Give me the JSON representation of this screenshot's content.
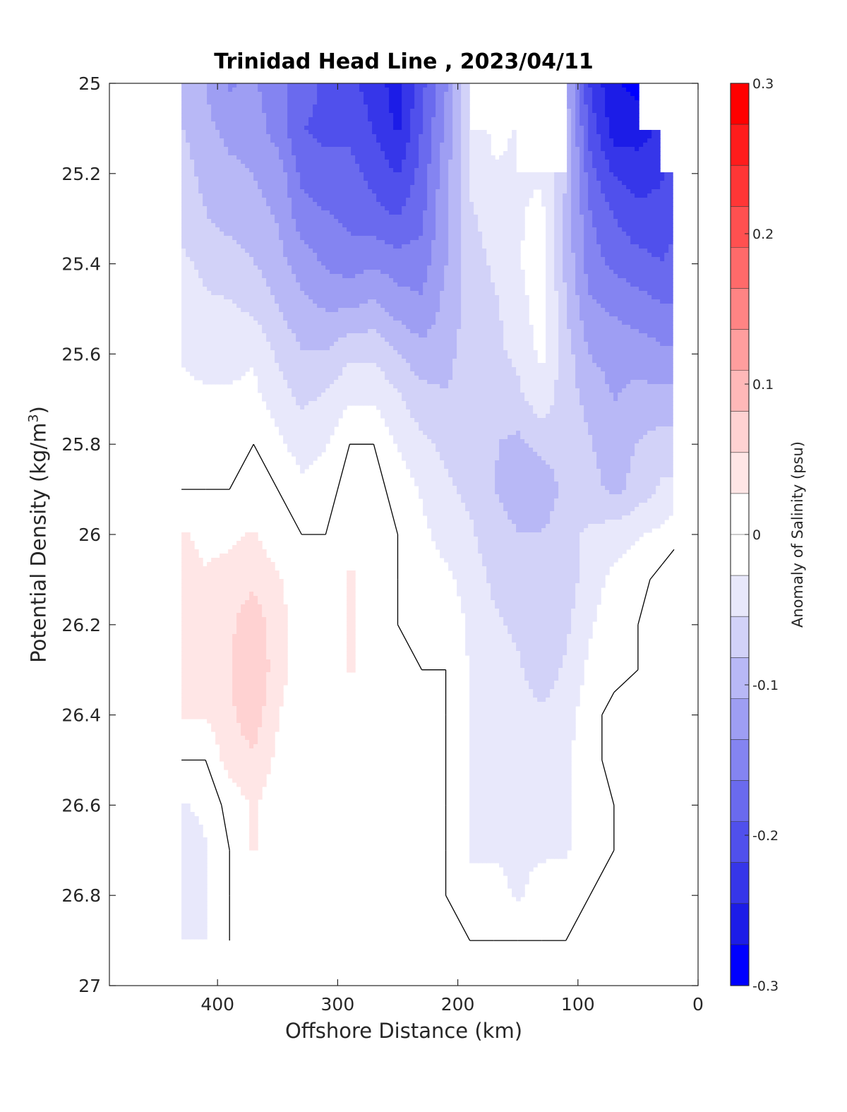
{
  "chart_data": {
    "type": "contour",
    "title": "Trinidad Head Line , 2023/04/11",
    "xlabel": "Offshore Distance (km)",
    "ylabel_main": "Potential Density (kg/m",
    "ylabel_sup": "3",
    "ylabel_close": ")",
    "colorbar_label": "Anomaly of Salinity (psu)",
    "xlim": [
      490,
      0
    ],
    "ylim": [
      27,
      25
    ],
    "x_reversed": true,
    "y_reversed": true,
    "xticks": [
      400,
      300,
      200,
      100,
      0
    ],
    "xtick_labels": [
      "400",
      "300",
      "200",
      "100",
      "0"
    ],
    "yticks": [
      25,
      25.2,
      25.4,
      25.6,
      25.8,
      26,
      26.2,
      26.4,
      26.6,
      26.8,
      27
    ],
    "ytick_labels": [
      "25",
      "25.2",
      "25.4",
      "25.6",
      "25.8",
      "26",
      "26.2",
      "26.4",
      "26.6",
      "26.8",
      "27"
    ],
    "colorbar": {
      "range": [
        -0.3,
        0.3
      ],
      "levels": [
        -0.3,
        -0.275,
        -0.25,
        -0.225,
        -0.2,
        -0.175,
        -0.15,
        -0.125,
        -0.1,
        -0.075,
        -0.05,
        -0.025,
        0,
        0.025,
        0.05,
        0.075,
        0.1,
        0.125,
        0.15,
        0.175,
        0.2,
        0.225,
        0.25,
        0.275,
        0.3
      ],
      "tick_values": [
        0.3,
        0.2,
        0.1,
        0,
        -0.1,
        -0.2,
        -0.3
      ],
      "tick_labels": [
        "0.3",
        "0.2",
        "0.1",
        "0",
        "-0.1",
        "-0.2",
        "-0.3"
      ],
      "colors_high_to_low": [
        "#ff0000",
        "#ff1c1c",
        "#ff3636",
        "#ff5050",
        "#ff6a6a",
        "#ff8484",
        "#ff9e9e",
        "#ffb8b8",
        "#ffd2d2",
        "#ffe6e6",
        "#ffffff",
        "#ffffff",
        "#e8e8fb",
        "#d2d2f8",
        "#b8b8f6",
        "#9e9ef3",
        "#8484f1",
        "#6a6aee",
        "#5050ec",
        "#3636e9",
        "#1c1ce7",
        "#0000ff"
      ]
    },
    "zero_contour_color": "#000000",
    "stations_x_km": [
      430,
      410,
      390,
      370,
      350,
      330,
      310,
      290,
      270,
      250,
      230,
      210,
      190,
      170,
      150,
      130,
      110,
      90,
      70,
      50,
      30,
      20
    ],
    "density_levels": [
      25.0,
      25.1,
      25.2,
      25.3,
      25.4,
      25.5,
      25.6,
      25.7,
      25.8,
      25.9,
      26.0,
      26.1,
      26.2,
      26.3,
      26.4,
      26.5,
      26.6,
      26.7,
      26.8,
      26.9
    ],
    "salinity_anomaly_psu": [
      [
        -0.09,
        -0.11,
        -0.14,
        -0.13,
        -0.16,
        -0.17,
        -0.2,
        -0.21,
        -0.23,
        -0.26,
        -0.2,
        -0.14,
        -0.05,
        null,
        null,
        null,
        -0.1,
        -0.22,
        -0.27,
        -0.28,
        null,
        null
      ],
      [
        -0.08,
        -0.1,
        -0.12,
        -0.12,
        -0.15,
        -0.19,
        -0.2,
        -0.2,
        -0.22,
        -0.25,
        -0.19,
        -0.13,
        -0.05,
        -0.02,
        -0.03,
        null,
        -0.09,
        -0.2,
        -0.26,
        -0.26,
        -0.24,
        null
      ],
      [
        -0.07,
        -0.09,
        -0.1,
        -0.11,
        -0.12,
        -0.17,
        -0.18,
        -0.18,
        -0.2,
        -0.22,
        -0.18,
        -0.12,
        -0.05,
        -0.03,
        -0.03,
        -0.03,
        -0.08,
        -0.18,
        -0.22,
        -0.23,
        -0.22,
        -0.21
      ],
      [
        -0.06,
        -0.08,
        -0.09,
        -0.1,
        -0.11,
        -0.15,
        -0.16,
        -0.17,
        -0.18,
        -0.19,
        -0.17,
        -0.11,
        -0.06,
        -0.04,
        -0.03,
        -0.02,
        -0.09,
        -0.16,
        -0.19,
        -0.21,
        -0.21,
        -0.2
      ],
      [
        -0.05,
        -0.06,
        -0.07,
        -0.08,
        -0.1,
        -0.12,
        -0.14,
        -0.15,
        -0.14,
        -0.15,
        -0.15,
        -0.11,
        -0.07,
        -0.05,
        -0.03,
        -0.01,
        -0.09,
        -0.15,
        -0.17,
        -0.18,
        -0.19,
        -0.18
      ],
      [
        -0.04,
        -0.05,
        -0.05,
        -0.06,
        -0.08,
        -0.1,
        -0.11,
        -0.11,
        -0.1,
        -0.12,
        -0.13,
        -0.1,
        -0.07,
        -0.06,
        -0.04,
        -0.01,
        -0.08,
        -0.13,
        -0.14,
        -0.15,
        -0.16,
        -0.16
      ],
      [
        -0.03,
        -0.04,
        -0.04,
        -0.03,
        -0.06,
        -0.08,
        -0.08,
        -0.06,
        -0.06,
        -0.08,
        -0.1,
        -0.09,
        -0.07,
        -0.06,
        -0.05,
        -0.02,
        -0.07,
        -0.11,
        -0.12,
        -0.12,
        -0.13,
        -0.13
      ],
      [
        -0.02,
        -0.02,
        -0.02,
        -0.02,
        -0.04,
        -0.06,
        -0.05,
        -0.03,
        -0.03,
        -0.05,
        -0.07,
        -0.08,
        -0.07,
        -0.07,
        -0.06,
        -0.04,
        -0.07,
        -0.09,
        -0.11,
        -0.1,
        -0.1,
        -0.1
      ],
      [
        -0.01,
        -0.01,
        -0.01,
        0.0,
        -0.02,
        -0.04,
        -0.03,
        0.0,
        0.0,
        -0.03,
        -0.05,
        -0.06,
        -0.07,
        -0.08,
        -0.09,
        -0.07,
        -0.06,
        -0.08,
        -0.1,
        -0.08,
        -0.07,
        -0.07
      ],
      [
        0.0,
        0.0,
        0.0,
        0.01,
        0.0,
        -0.02,
        -0.01,
        0.01,
        0.01,
        -0.01,
        -0.03,
        -0.05,
        -0.06,
        -0.08,
        -0.1,
        -0.11,
        -0.07,
        -0.07,
        -0.09,
        -0.07,
        -0.05,
        -0.05
      ],
      [
        0.03,
        0.02,
        0.02,
        0.03,
        0.01,
        0.0,
        0.0,
        0.02,
        0.02,
        0.0,
        -0.02,
        -0.04,
        -0.05,
        -0.07,
        -0.08,
        -0.08,
        -0.06,
        -0.05,
        -0.04,
        -0.03,
        -0.02,
        -0.01
      ],
      [
        0.04,
        0.03,
        0.04,
        0.05,
        0.03,
        0.01,
        0.0,
        0.03,
        0.02,
        0.0,
        -0.01,
        -0.02,
        -0.04,
        -0.06,
        -0.07,
        -0.08,
        -0.07,
        -0.04,
        -0.02,
        -0.01,
        0.01,
        0.02
      ],
      [
        0.05,
        0.04,
        0.05,
        0.07,
        0.04,
        0.01,
        0.0,
        0.03,
        0.02,
        0.0,
        -0.01,
        -0.01,
        -0.03,
        -0.05,
        -0.06,
        -0.08,
        -0.06,
        -0.03,
        -0.01,
        0.0,
        0.01,
        0.02
      ],
      [
        0.04,
        0.04,
        0.05,
        0.08,
        0.04,
        0.01,
        0.0,
        0.03,
        0.02,
        0.0,
        0.0,
        0.0,
        -0.03,
        -0.04,
        -0.05,
        -0.07,
        -0.05,
        -0.02,
        -0.01,
        0.0,
        0.02,
        0.02
      ],
      [
        0.03,
        0.03,
        0.05,
        0.07,
        0.03,
        0.0,
        0.0,
        0.01,
        0.01,
        0.0,
        0.0,
        0.0,
        -0.03,
        -0.04,
        -0.04,
        -0.05,
        -0.04,
        -0.01,
        0.01,
        0.02,
        0.02,
        0.02
      ],
      [
        0.0,
        0.0,
        0.04,
        0.05,
        0.02,
        0.0,
        0.0,
        0.0,
        0.0,
        0.0,
        0.0,
        0.0,
        -0.03,
        -0.04,
        -0.04,
        -0.04,
        -0.03,
        -0.01,
        0.01,
        0.02,
        0.02,
        0.01
      ],
      [
        -0.03,
        -0.02,
        0.01,
        0.03,
        0.01,
        0.0,
        0.0,
        0.0,
        0.0,
        0.0,
        0.0,
        0.0,
        -0.03,
        -0.03,
        -0.03,
        -0.03,
        -0.03,
        -0.01,
        0.0,
        0.02,
        0.02,
        0.0
      ],
      [
        -0.05,
        -0.03,
        0.0,
        0.03,
        0.0,
        0.0,
        0.0,
        0.0,
        0.0,
        0.0,
        0.0,
        0.0,
        -0.03,
        -0.03,
        -0.03,
        -0.03,
        -0.03,
        -0.01,
        0.0,
        0.01,
        0.01,
        0.0
      ],
      [
        -0.04,
        -0.03,
        0.0,
        0.01,
        0.0,
        0.0,
        0.0,
        0.0,
        0.0,
        0.0,
        0.0,
        0.0,
        -0.02,
        -0.02,
        -0.03,
        -0.02,
        -0.01,
        0.0,
        0.0,
        0.0,
        0.0,
        0.0
      ],
      [
        -0.03,
        -0.03,
        0.0,
        0.0,
        0.0,
        0.0,
        0.0,
        0.0,
        0.0,
        0.0,
        0.0,
        0.0,
        0.0,
        0.0,
        0.0,
        0.0,
        0.0,
        0.0,
        0.0,
        0.0,
        0.0,
        0.0
      ]
    ]
  }
}
